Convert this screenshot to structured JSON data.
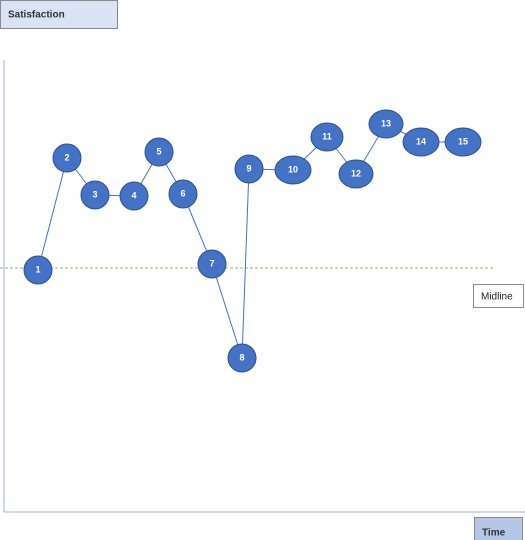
{
  "axes": {
    "y_label": "Satisfaction",
    "x_label": "Time"
  },
  "midline": {
    "label": "Midline"
  },
  "nodes": [
    {
      "label": "1"
    },
    {
      "label": "2"
    },
    {
      "label": "3"
    },
    {
      "label": "4"
    },
    {
      "label": "5"
    },
    {
      "label": "6"
    },
    {
      "label": "7"
    },
    {
      "label": "8"
    },
    {
      "label": "9"
    },
    {
      "label": "10"
    },
    {
      "label": "11"
    },
    {
      "label": "12"
    },
    {
      "label": "13"
    },
    {
      "label": "14"
    },
    {
      "label": "15"
    }
  ]
}
